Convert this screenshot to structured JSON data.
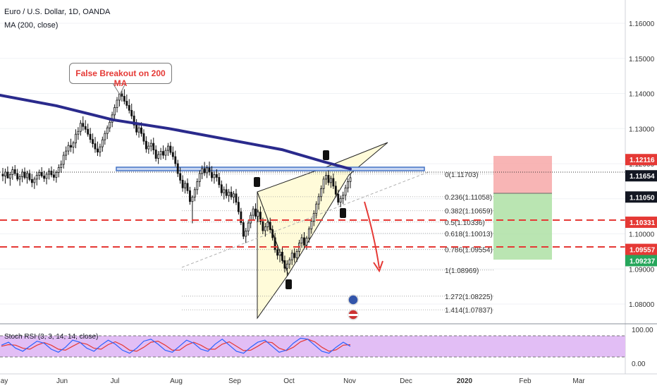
{
  "header": {
    "title": "Euro / U.S. Dollar, 1D, OANDA",
    "indicator": "MA (200, close)",
    "rsi_label": "Stoch RSI (3, 3, 14, 14, close)"
  },
  "annotation": {
    "text": "False Breakout on 200 MA"
  },
  "colors": {
    "ma": "#2a2a8c",
    "bull": "#ffffff",
    "bear": "#111111",
    "resistance": "#4472c4",
    "dashed_support": "#e53935",
    "wedge_fill": "#fffbd9",
    "stop_zone": "#f7a8a8",
    "target_zone": "#aee0a4",
    "rsi_band": "#e2bef5",
    "rsi_k": "#2962ff",
    "rsi_d": "#e53935",
    "arrow": "#e53935"
  },
  "price_axis": {
    "ticks": [
      "1.16000",
      "1.15000",
      "1.14000",
      "1.13000",
      "1.12000",
      "1.11000",
      "1.10000",
      "1.09000",
      "1.08000"
    ],
    "tags": [
      {
        "label": "1.12116",
        "bg": "#e53935",
        "fg": "#ffffff"
      },
      {
        "label": "1.11654",
        "bg": "#131722",
        "fg": "#ffffff"
      },
      {
        "label": "1.11050",
        "bg": "#131722",
        "fg": "#ffffff"
      },
      {
        "label": "1.10331",
        "bg": "#e53935",
        "fg": "#ffffff"
      },
      {
        "label": "1.09557",
        "bg": "#e53935",
        "fg": "#ffffff"
      },
      {
        "label": "1.09237",
        "bg": "#26a65b",
        "fg": "#ffffff"
      }
    ]
  },
  "rsi_axis": {
    "ticks": [
      "100.00",
      "0.00"
    ]
  },
  "time_axis": {
    "labels": [
      "ay",
      "Jun",
      "Jul",
      "Aug",
      "Sep",
      "Oct",
      "Nov",
      "Dec",
      "2020",
      "Feb",
      "Mar"
    ]
  },
  "fib_labels": [
    "0(1.11703)",
    "0.236(1.11058)",
    "0.382(1.10659)",
    "0.5(1.10336)",
    "0.618(1.10013)",
    "0.786(1.09554)",
    "1(1.08969)",
    "1.272(1.08225)",
    "1.414(1.07837)"
  ],
  "chart_data": {
    "type": "candlestick",
    "symbol": "Euro / U.S. Dollar",
    "timeframe": "1D",
    "source": "OANDA",
    "y_range": [
      1.074,
      1.168
    ],
    "moving_average": {
      "name": "MA (200, close)",
      "points": [
        [
          "May",
          1.1395
        ],
        [
          "Jun",
          1.1355
        ],
        [
          "Jul",
          1.1315
        ],
        [
          "Aug",
          1.128
        ],
        [
          "Sep",
          1.1235
        ],
        [
          "Oct",
          1.1195
        ],
        [
          "Nov",
          1.117
        ]
      ]
    },
    "candles": [
      [
        1.117,
        1.1188,
        1.115,
        1.1165
      ],
      [
        1.1165,
        1.1186,
        1.1143,
        1.1176
      ],
      [
        1.1176,
        1.1192,
        1.1158,
        1.1159
      ],
      [
        1.1159,
        1.1176,
        1.1137,
        1.1169
      ],
      [
        1.1169,
        1.1192,
        1.1154,
        1.1183
      ],
      [
        1.1183,
        1.1196,
        1.1165,
        1.1172
      ],
      [
        1.1172,
        1.1185,
        1.115,
        1.1156
      ],
      [
        1.1156,
        1.117,
        1.1137,
        1.1163
      ],
      [
        1.1163,
        1.1185,
        1.1147,
        1.1176
      ],
      [
        1.1176,
        1.1189,
        1.1155,
        1.116
      ],
      [
        1.116,
        1.118,
        1.1143,
        1.1172
      ],
      [
        1.1172,
        1.1183,
        1.115,
        1.1155
      ],
      [
        1.1155,
        1.1171,
        1.1133,
        1.1146
      ],
      [
        1.1146,
        1.1163,
        1.1128,
        1.1156
      ],
      [
        1.1156,
        1.1177,
        1.1138,
        1.1167
      ],
      [
        1.1167,
        1.1183,
        1.1154,
        1.1175
      ],
      [
        1.1175,
        1.119,
        1.116,
        1.1165
      ],
      [
        1.1165,
        1.118,
        1.1148,
        1.1158
      ],
      [
        1.1158,
        1.1176,
        1.1141,
        1.117
      ],
      [
        1.117,
        1.1187,
        1.1155,
        1.1179
      ],
      [
        1.1179,
        1.1192,
        1.1161,
        1.1168
      ],
      [
        1.1168,
        1.1184,
        1.1151,
        1.1161
      ],
      [
        1.1161,
        1.1181,
        1.1146,
        1.1175
      ],
      [
        1.1175,
        1.1198,
        1.1161,
        1.1189
      ],
      [
        1.1189,
        1.1209,
        1.1174,
        1.1198
      ],
      [
        1.1198,
        1.1234,
        1.1186,
        1.1224
      ],
      [
        1.1224,
        1.1249,
        1.121,
        1.1236
      ],
      [
        1.1236,
        1.1262,
        1.1225,
        1.1252
      ],
      [
        1.1252,
        1.1271,
        1.1233,
        1.1247
      ],
      [
        1.1247,
        1.1265,
        1.1229,
        1.1259
      ],
      [
        1.1259,
        1.1298,
        1.1244,
        1.1284
      ],
      [
        1.1284,
        1.1304,
        1.1268,
        1.1292
      ],
      [
        1.1292,
        1.1324,
        1.128,
        1.1315
      ],
      [
        1.1315,
        1.1335,
        1.1294,
        1.1306
      ],
      [
        1.1306,
        1.1324,
        1.1288,
        1.1298
      ],
      [
        1.1298,
        1.1314,
        1.1277,
        1.1284
      ],
      [
        1.1284,
        1.1302,
        1.1259,
        1.1269
      ],
      [
        1.1269,
        1.1286,
        1.1246,
        1.1257
      ],
      [
        1.1257,
        1.1276,
        1.1231,
        1.1242
      ],
      [
        1.1242,
        1.1263,
        1.1222,
        1.1233
      ],
      [
        1.1233,
        1.1257,
        1.122,
        1.1248
      ],
      [
        1.1248,
        1.1277,
        1.1234,
        1.1268
      ],
      [
        1.1268,
        1.1294,
        1.1254,
        1.1286
      ],
      [
        1.1286,
        1.1309,
        1.127,
        1.1302
      ],
      [
        1.1302,
        1.1326,
        1.129,
        1.1318
      ],
      [
        1.1318,
        1.1348,
        1.1304,
        1.1339
      ],
      [
        1.1339,
        1.1369,
        1.1325,
        1.136
      ],
      [
        1.136,
        1.139,
        1.1346,
        1.1381
      ],
      [
        1.1381,
        1.141,
        1.1363,
        1.1399
      ],
      [
        1.1399,
        1.1417,
        1.1377,
        1.1392
      ],
      [
        1.1392,
        1.1412,
        1.1369,
        1.1378
      ],
      [
        1.1378,
        1.1397,
        1.1357,
        1.1366
      ],
      [
        1.1366,
        1.1384,
        1.1343,
        1.1352
      ],
      [
        1.1352,
        1.1371,
        1.1327,
        1.1336
      ],
      [
        1.1336,
        1.135,
        1.13,
        1.131
      ],
      [
        1.131,
        1.1327,
        1.1281,
        1.129
      ],
      [
        1.129,
        1.1311,
        1.1274,
        1.1302
      ],
      [
        1.1302,
        1.1318,
        1.1277,
        1.1286
      ],
      [
        1.1286,
        1.1298,
        1.1254,
        1.1264
      ],
      [
        1.1264,
        1.1278,
        1.1231,
        1.1242
      ],
      [
        1.1242,
        1.1262,
        1.1228,
        1.125
      ],
      [
        1.125,
        1.1269,
        1.1235,
        1.1258
      ],
      [
        1.1258,
        1.1274,
        1.1226,
        1.1239
      ],
      [
        1.1239,
        1.1252,
        1.1206,
        1.1215
      ],
      [
        1.1215,
        1.1236,
        1.1199,
        1.1226
      ],
      [
        1.1226,
        1.1245,
        1.1211,
        1.1235
      ],
      [
        1.1235,
        1.1252,
        1.1214,
        1.1224
      ],
      [
        1.1224,
        1.1246,
        1.121,
        1.1238
      ],
      [
        1.1238,
        1.1259,
        1.1222,
        1.125
      ],
      [
        1.125,
        1.1262,
        1.1225,
        1.1232
      ],
      [
        1.1232,
        1.1249,
        1.1211,
        1.122
      ],
      [
        1.122,
        1.1237,
        1.1192,
        1.12
      ],
      [
        1.12,
        1.1211,
        1.1162,
        1.1172
      ],
      [
        1.1172,
        1.1189,
        1.1143,
        1.1153
      ],
      [
        1.1153,
        1.1167,
        1.112,
        1.1131
      ],
      [
        1.1131,
        1.1152,
        1.1115,
        1.1144
      ],
      [
        1.1144,
        1.1158,
        1.1114,
        1.1123
      ],
      [
        1.1123,
        1.1134,
        1.1083,
        1.1092
      ],
      [
        1.1092,
        1.111,
        1.103,
        1.1105
      ],
      [
        1.1105,
        1.1133,
        1.1093,
        1.1126
      ],
      [
        1.1126,
        1.1158,
        1.1112,
        1.1149
      ],
      [
        1.1149,
        1.1181,
        1.1134,
        1.1172
      ],
      [
        1.1172,
        1.1195,
        1.1156,
        1.1186
      ],
      [
        1.1186,
        1.1205,
        1.1165,
        1.1174
      ],
      [
        1.1174,
        1.1196,
        1.1159,
        1.1188
      ],
      [
        1.1188,
        1.1206,
        1.1166,
        1.1176
      ],
      [
        1.1176,
        1.1193,
        1.1149,
        1.116
      ],
      [
        1.116,
        1.1178,
        1.1143,
        1.1169
      ],
      [
        1.1169,
        1.1184,
        1.1149,
        1.1161
      ],
      [
        1.1161,
        1.1174,
        1.1131,
        1.114
      ],
      [
        1.114,
        1.1152,
        1.1108,
        1.1117
      ],
      [
        1.1117,
        1.1135,
        1.1098,
        1.1126
      ],
      [
        1.1126,
        1.1143,
        1.1101,
        1.1109
      ],
      [
        1.1109,
        1.1128,
        1.1091,
        1.1119
      ],
      [
        1.1119,
        1.1135,
        1.1097,
        1.1105
      ],
      [
        1.1105,
        1.1122,
        1.1087,
        1.1114
      ],
      [
        1.1114,
        1.1128,
        1.1082,
        1.109
      ],
      [
        1.109,
        1.1106,
        1.1055,
        1.1063
      ],
      [
        1.1063,
        1.1074,
        1.1025,
        1.1032
      ],
      [
        1.1032,
        1.1042,
        1.0985,
        1.0993
      ],
      [
        1.0993,
        1.1017,
        1.0974,
        1.1008
      ],
      [
        1.1008,
        1.104,
        1.0995,
        1.1031
      ],
      [
        1.1031,
        1.1062,
        1.1016,
        1.1053
      ],
      [
        1.1053,
        1.1079,
        1.1041,
        1.1071
      ],
      [
        1.1071,
        1.1087,
        1.1042,
        1.105
      ],
      [
        1.105,
        1.1069,
        1.1034,
        1.1062
      ],
      [
        1.1062,
        1.1078,
        1.1026,
        1.1035
      ],
      [
        1.1035,
        1.1046,
        1.0999,
        1.1009
      ],
      [
        1.1009,
        1.1031,
        1.0992,
        1.102
      ],
      [
        1.102,
        1.1041,
        1.1007,
        1.1033
      ],
      [
        1.1033,
        1.1046,
        1.1003,
        1.1012
      ],
      [
        1.1012,
        1.1024,
        1.0981,
        1.0989
      ],
      [
        1.0989,
        1.1003,
        1.0946,
        1.0955
      ],
      [
        1.0955,
        1.0969,
        1.0927,
        1.0939
      ],
      [
        1.0939,
        1.0957,
        1.0919,
        1.0948
      ],
      [
        1.0948,
        1.0961,
        1.0915,
        1.0924
      ],
      [
        1.0924,
        1.0938,
        1.089,
        1.0902
      ],
      [
        1.0902,
        1.0925,
        1.088,
        1.0914
      ],
      [
        1.0914,
        1.0933,
        1.09,
        1.0926
      ],
      [
        1.0926,
        1.0954,
        1.0911,
        1.0945
      ],
      [
        1.0945,
        1.0959,
        1.0918,
        1.0932
      ],
      [
        1.0932,
        1.0957,
        1.092,
        1.095
      ],
      [
        1.095,
        1.0983,
        1.0936,
        1.0974
      ],
      [
        1.0974,
        1.0999,
        1.096,
        1.0989
      ],
      [
        1.0989,
        1.1005,
        1.096,
        1.0968
      ],
      [
        1.0968,
        1.0994,
        1.0955,
        1.0988
      ],
      [
        1.0988,
        1.1021,
        1.0975,
        1.1014
      ],
      [
        1.1014,
        1.1045,
        1.1,
        1.1036
      ],
      [
        1.1036,
        1.1067,
        1.1022,
        1.1058
      ],
      [
        1.1058,
        1.1093,
        1.1044,
        1.1085
      ],
      [
        1.1085,
        1.1115,
        1.1069,
        1.1106
      ],
      [
        1.1106,
        1.1138,
        1.1093,
        1.1129
      ],
      [
        1.1129,
        1.1164,
        1.1115,
        1.1156
      ],
      [
        1.1156,
        1.1178,
        1.114,
        1.1167
      ],
      [
        1.1167,
        1.1181,
        1.1138,
        1.1146
      ],
      [
        1.1146,
        1.1166,
        1.1131,
        1.1158
      ],
      [
        1.1158,
        1.1172,
        1.1128,
        1.1136
      ],
      [
        1.1136,
        1.115,
        1.1104,
        1.1113
      ],
      [
        1.1113,
        1.1126,
        1.1082,
        1.109
      ],
      [
        1.109,
        1.1109,
        1.1076,
        1.1101
      ],
      [
        1.1101,
        1.112,
        1.1085,
        1.111
      ],
      [
        1.111,
        1.114,
        1.1095,
        1.1131
      ],
      [
        1.1131,
        1.1158,
        1.1118,
        1.1149
      ],
      [
        1.1149,
        1.1171,
        1.113,
        1.116
      ]
    ],
    "lines": {
      "resistance_zone": [
        1.1163,
        1.1172
      ],
      "dashed_support_1": 1.10331,
      "dashed_support_2": 1.09557,
      "last_price": 1.11654
    },
    "fibonacci": [
      {
        "level": "0",
        "price": 1.11703
      },
      {
        "level": "0.236",
        "price": 1.11058
      },
      {
        "level": "0.382",
        "price": 1.10659
      },
      {
        "level": "0.5",
        "price": 1.10336
      },
      {
        "level": "0.618",
        "price": 1.10013
      },
      {
        "level": "0.786",
        "price": 1.09554
      },
      {
        "level": "1",
        "price": 1.08969
      },
      {
        "level": "1.272",
        "price": 1.08225
      },
      {
        "level": "1.414",
        "price": 1.07837
      }
    ],
    "position": {
      "stop": 1.12116,
      "entry": 1.1105,
      "target": 1.09237
    },
    "stoch_rsi": {
      "range": [
        0,
        100
      ],
      "k": [
        55,
        70,
        40,
        25,
        50,
        75,
        65,
        35,
        20,
        45,
        80,
        70,
        40,
        25,
        55,
        80,
        60,
        30,
        15,
        40,
        75,
        85,
        60,
        30,
        20,
        50,
        80,
        65,
        35,
        25,
        60,
        85,
        55,
        25,
        15,
        45,
        70,
        80,
        50,
        20,
        30,
        65,
        90,
        85,
        55,
        25,
        15,
        45,
        70,
        50
      ],
      "d": [
        50,
        58,
        55,
        40,
        35,
        55,
        68,
        55,
        35,
        30,
        50,
        68,
        60,
        40,
        35,
        58,
        72,
        55,
        30,
        25,
        45,
        70,
        75,
        55,
        30,
        30,
        55,
        70,
        55,
        35,
        35,
        60,
        72,
        50,
        28,
        30,
        50,
        72,
        68,
        40,
        28,
        45,
        72,
        85,
        72,
        45,
        25,
        32,
        55,
        58
      ]
    }
  }
}
